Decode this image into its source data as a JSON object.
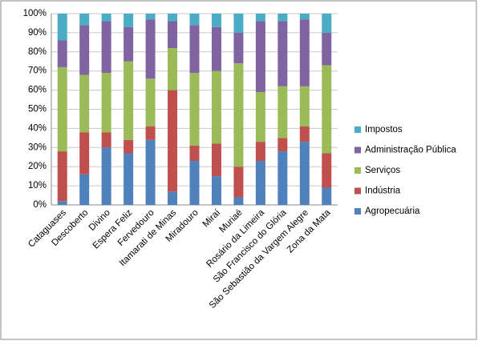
{
  "chart_data": {
    "type": "stacked_bar_percent",
    "categories": [
      "Cataguases",
      "Descoberto",
      "Divino",
      "Espera Feliz",
      "Fervedouro",
      "Itamarati de Minas",
      "Miradouro",
      "Miraí",
      "Muriaé",
      "Rosário da Limeira",
      "São Francisco do Glória",
      "São Sebastião da Vargem Alegre",
      "Zona da Mata"
    ],
    "series": [
      {
        "name": "Agropecuária",
        "color": "#4f81bd",
        "values": [
          2,
          16,
          30,
          27,
          34,
          7,
          23,
          15,
          4,
          23,
          28,
          33,
          9
        ]
      },
      {
        "name": "Indústria",
        "color": "#c0504d",
        "values": [
          26,
          22,
          8,
          7,
          7,
          53,
          8,
          17,
          16,
          10,
          7,
          8,
          18
        ]
      },
      {
        "name": "Serviços",
        "color": "#9bbb59",
        "values": [
          44,
          30,
          31,
          41,
          25,
          22,
          38,
          38,
          54,
          26,
          27,
          21,
          46
        ]
      },
      {
        "name": "Administração Pública",
        "color": "#8064a2",
        "values": [
          14,
          26,
          27,
          18,
          31,
          14,
          25,
          23,
          16,
          37,
          34,
          35,
          17
        ]
      },
      {
        "name": "Impostos",
        "color": "#4bacc6",
        "values": [
          14,
          6,
          4,
          7,
          3,
          4,
          6,
          7,
          10,
          4,
          4,
          3,
          10
        ]
      }
    ],
    "ylim": [
      0,
      100
    ],
    "yticks": [
      {
        "value": 0,
        "label": "0%"
      },
      {
        "value": 10,
        "label": "10%"
      },
      {
        "value": 20,
        "label": "20%"
      },
      {
        "value": 30,
        "label": "30%"
      },
      {
        "value": 40,
        "label": "40%"
      },
      {
        "value": 50,
        "label": "50%"
      },
      {
        "value": 60,
        "label": "60%"
      },
      {
        "value": 70,
        "label": "70%"
      },
      {
        "value": 80,
        "label": "80%"
      },
      {
        "value": 90,
        "label": "90%"
      },
      {
        "value": 100,
        "label": "100%"
      }
    ],
    "grid": true,
    "legend": "right"
  }
}
